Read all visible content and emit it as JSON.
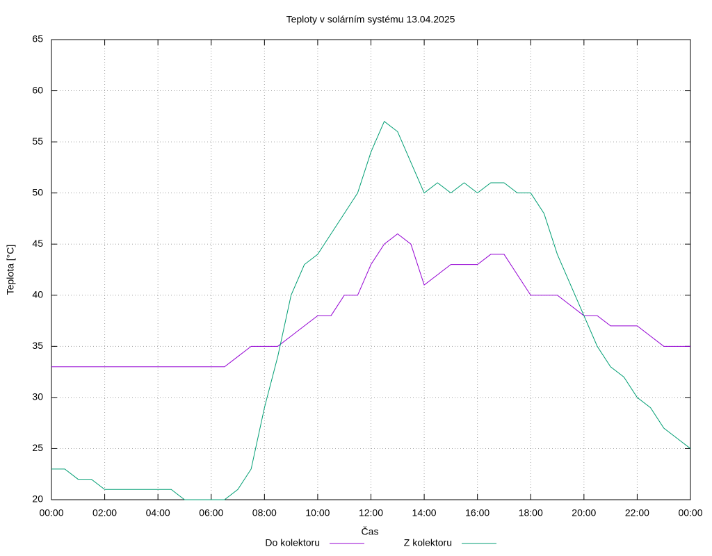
{
  "chart_data": {
    "type": "line",
    "title": "Teploty v solárním systému 13.04.2025",
    "x_label": "Čas",
    "y_label": "Teplota [°C]",
    "x": [
      0,
      0.5,
      1,
      1.5,
      2,
      2.5,
      3,
      3.5,
      4,
      4.5,
      5,
      5.5,
      6,
      6.5,
      7,
      7.5,
      8,
      8.5,
      9,
      9.5,
      10,
      10.5,
      11,
      11.5,
      12,
      12.5,
      13,
      13.5,
      14,
      14.5,
      15,
      15.5,
      16,
      16.5,
      17,
      17.5,
      18,
      18.5,
      19,
      19.5,
      20,
      20.5,
      21,
      21.5,
      22,
      22.5,
      23,
      23.5,
      24
    ],
    "series": [
      {
        "name": "Do kolektoru",
        "color": "#9400d3",
        "values": [
          33,
          33,
          33,
          33,
          33,
          33,
          33,
          33,
          33,
          33,
          33,
          33,
          33,
          33,
          34,
          35,
          35,
          35,
          36,
          37,
          38,
          38,
          40,
          40,
          43,
          45,
          46,
          45,
          41,
          42,
          43,
          43,
          43,
          44,
          44,
          42,
          40,
          40,
          40,
          39,
          38,
          38,
          37,
          37,
          37,
          36,
          35,
          35,
          35
        ]
      },
      {
        "name": "Z kolektoru",
        "color": "#009e73",
        "values": [
          23,
          23,
          22,
          22,
          21,
          21,
          21,
          21,
          21,
          21,
          20,
          20,
          20,
          20,
          21,
          23,
          29,
          34,
          40,
          43,
          44,
          46,
          48,
          50,
          54,
          57,
          56,
          53,
          50,
          51,
          50,
          51,
          50,
          51,
          51,
          50,
          50,
          48,
          44,
          41,
          38,
          35,
          33,
          32,
          30,
          29,
          27,
          26,
          25
        ]
      }
    ],
    "xlim": [
      0,
      24
    ],
    "xticks": [
      {
        "value": 0,
        "label": "00:00"
      },
      {
        "value": 2,
        "label": "02:00"
      },
      {
        "value": 4,
        "label": "04:00"
      },
      {
        "value": 6,
        "label": "06:00"
      },
      {
        "value": 8,
        "label": "08:00"
      },
      {
        "value": 10,
        "label": "10:00"
      },
      {
        "value": 12,
        "label": "12:00"
      },
      {
        "value": 14,
        "label": "14:00"
      },
      {
        "value": 16,
        "label": "16:00"
      },
      {
        "value": 18,
        "label": "18:00"
      },
      {
        "value": 20,
        "label": "20:00"
      },
      {
        "value": 22,
        "label": "22:00"
      },
      {
        "value": 24,
        "label": "00:00"
      }
    ],
    "ylim": [
      20,
      65
    ],
    "yticks": [
      20,
      25,
      30,
      35,
      40,
      45,
      50,
      55,
      60,
      65
    ],
    "grid": true,
    "legend": "bottom"
  }
}
